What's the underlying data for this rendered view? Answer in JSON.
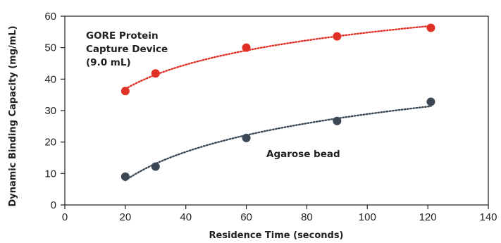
{
  "chart_data": {
    "type": "scatter",
    "xlabel": "Residence Time (seconds)",
    "ylabel": "Dynamic Binding Capacity (mg/mL)",
    "xlim": [
      0,
      140
    ],
    "ylim": [
      0,
      60
    ],
    "x_ticks": [
      0,
      20,
      40,
      60,
      80,
      100,
      120,
      140
    ],
    "y_ticks": [
      0,
      10,
      20,
      30,
      40,
      50,
      60
    ],
    "grid": false,
    "series": [
      {
        "color": "#e03127",
        "trendline_color": "#e03127",
        "points": [
          {
            "x": 20,
            "y": 36.2
          },
          {
            "x": 30,
            "y": 41.8
          },
          {
            "x": 60,
            "y": 50.0
          },
          {
            "x": 90,
            "y": 53.6
          },
          {
            "x": 121,
            "y": 56.3
          }
        ]
      },
      {
        "color": "#3b4754",
        "trendline_color": "#3b4754",
        "points": [
          {
            "x": 20,
            "y": 9.0
          },
          {
            "x": 30,
            "y": 12.2
          },
          {
            "x": 60,
            "y": 21.3
          },
          {
            "x": 90,
            "y": 26.7
          },
          {
            "x": 121,
            "y": 32.8
          }
        ]
      }
    ],
    "annotations": [
      {
        "lines": [
          "GORE Protein",
          "Capture Device",
          "(9.0 mL)"
        ]
      },
      {
        "lines": [
          "Agarose bead"
        ]
      }
    ]
  }
}
